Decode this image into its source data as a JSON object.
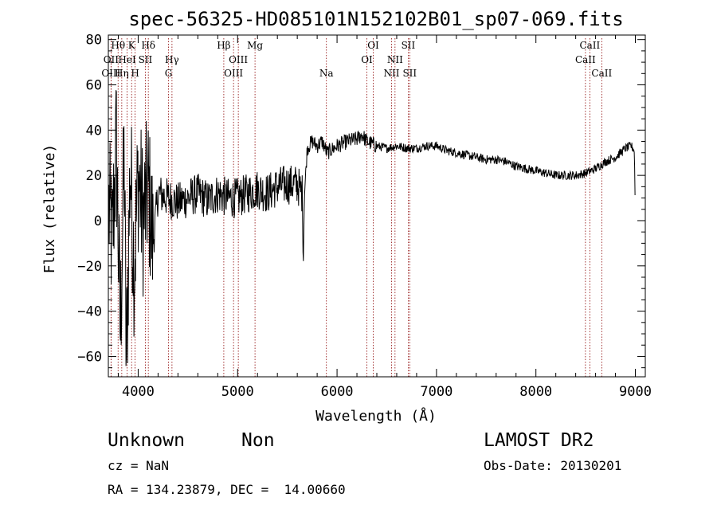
{
  "chart_data": {
    "type": "line",
    "title": "spec-56325-HD085101N152102B01_sp07-069.fits",
    "xlabel": "Wavelength (Å)",
    "ylabel": "Flux (relative)",
    "xlim": [
      3700,
      9100
    ],
    "ylim": [
      -69,
      82
    ],
    "xticks": [
      4000,
      5000,
      6000,
      7000,
      8000,
      9000
    ],
    "yticks": [
      -60,
      -40,
      -20,
      0,
      20,
      40,
      60,
      80
    ],
    "grid": false,
    "line_color": "#000000",
    "marker_color": "#8b0000",
    "spectrum_anchors": [
      [
        3705,
        5
      ],
      [
        3740,
        -10
      ],
      [
        3780,
        35
      ],
      [
        3820,
        -50
      ],
      [
        3860,
        30
      ],
      [
        3880,
        -65
      ],
      [
        3920,
        25
      ],
      [
        3960,
        -20
      ],
      [
        4000,
        20
      ],
      [
        4050,
        0
      ],
      [
        4100,
        15
      ],
      [
        4150,
        -10
      ],
      [
        4200,
        12
      ],
      [
        4300,
        10
      ],
      [
        4400,
        8
      ],
      [
        4500,
        10
      ],
      [
        4600,
        12
      ],
      [
        4700,
        9
      ],
      [
        4800,
        12
      ],
      [
        4900,
        10
      ],
      [
        5000,
        10
      ],
      [
        5100,
        12
      ],
      [
        5200,
        14
      ],
      [
        5300,
        12
      ],
      [
        5400,
        15
      ],
      [
        5500,
        16
      ],
      [
        5600,
        16
      ],
      [
        5650,
        12
      ],
      [
        5660,
        -20
      ],
      [
        5670,
        10
      ],
      [
        5700,
        32
      ],
      [
        5750,
        35
      ],
      [
        5800,
        33
      ],
      [
        5850,
        35
      ],
      [
        5900,
        30
      ],
      [
        6000,
        33
      ],
      [
        6100,
        35
      ],
      [
        6200,
        36
      ],
      [
        6250,
        38
      ],
      [
        6300,
        35
      ],
      [
        6400,
        33
      ],
      [
        6500,
        32
      ],
      [
        6600,
        33
      ],
      [
        6700,
        32
      ],
      [
        6800,
        32
      ],
      [
        6900,
        33
      ],
      [
        7000,
        33
      ],
      [
        7100,
        31
      ],
      [
        7200,
        30
      ],
      [
        7300,
        29
      ],
      [
        7400,
        28
      ],
      [
        7500,
        27
      ],
      [
        7600,
        27
      ],
      [
        7700,
        26
      ],
      [
        7800,
        24
      ],
      [
        7900,
        23
      ],
      [
        8000,
        22
      ],
      [
        8100,
        21
      ],
      [
        8200,
        20
      ],
      [
        8300,
        20
      ],
      [
        8400,
        20
      ],
      [
        8500,
        21
      ],
      [
        8600,
        23
      ],
      [
        8700,
        26
      ],
      [
        8800,
        28
      ],
      [
        8900,
        32
      ],
      [
        8960,
        33
      ],
      [
        8990,
        31
      ],
      [
        9000,
        5
      ]
    ],
    "lines": [
      {
        "label": "Hθ",
        "x": 3798,
        "row": 0
      },
      {
        "label": "OII",
        "x": 3727,
        "row": 1
      },
      {
        "label": "OIII",
        "x": 3727,
        "row": 2
      },
      {
        "label": "HeI",
        "x": 3889,
        "row": 1
      },
      {
        "label": "Hη",
        "x": 3835,
        "row": 2
      },
      {
        "label": "K",
        "x": 3934,
        "row": 0
      },
      {
        "label": "SII",
        "x": 4072,
        "row": 1
      },
      {
        "label": "H",
        "x": 3969,
        "row": 2
      },
      {
        "label": "Hδ",
        "x": 4102,
        "row": 0
      },
      {
        "label": "Hγ",
        "x": 4340,
        "row": 1
      },
      {
        "label": "G",
        "x": 4305,
        "row": 2
      },
      {
        "label": "Hβ",
        "x": 4861,
        "row": 0
      },
      {
        "label": "OIII",
        "x": 5007,
        "row": 1
      },
      {
        "label": "OIII",
        "x": 4959,
        "row": 2
      },
      {
        "label": "Mg",
        "x": 5175,
        "row": 0
      },
      {
        "label": "Na",
        "x": 5893,
        "row": 2
      },
      {
        "label": "OI",
        "x": 6364,
        "row": 0
      },
      {
        "label": "OI",
        "x": 6300,
        "row": 1
      },
      {
        "label": "NII",
        "x": 6583,
        "row": 1
      },
      {
        "label": "NII",
        "x": 6548,
        "row": 2
      },
      {
        "label": "SII",
        "x": 6716,
        "row": 0
      },
      {
        "label": "SII",
        "x": 6731,
        "row": 2
      },
      {
        "label": "CaII",
        "x": 8542,
        "row": 0
      },
      {
        "label": "CaII",
        "x": 8498,
        "row": 1
      },
      {
        "label": "CaII",
        "x": 8662,
        "row": 2
      }
    ]
  },
  "info": {
    "class": "Unknown",
    "subclass": "Non",
    "survey": "LAMOST DR2",
    "cz": "cz = NaN",
    "obs_date": "Obs-Date: 20130201",
    "coords": "RA = 134.23879, DEC =  14.00660"
  }
}
